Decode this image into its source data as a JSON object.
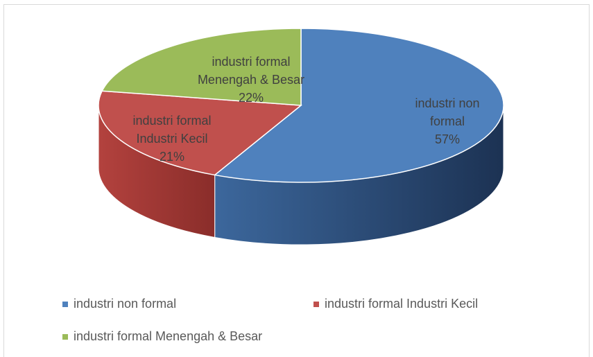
{
  "chart_data": {
    "type": "pie3d",
    "categories": [
      "industri non formal",
      "industri formal Industri Kecil",
      "industri formal Menengah & Besar"
    ],
    "values": [
      57,
      21,
      22
    ],
    "value_labels": [
      "57%",
      "21%",
      "22%"
    ],
    "colors": [
      "#4f81bd",
      "#c0504d",
      "#9bbb59"
    ],
    "legend": "bottom"
  }
}
